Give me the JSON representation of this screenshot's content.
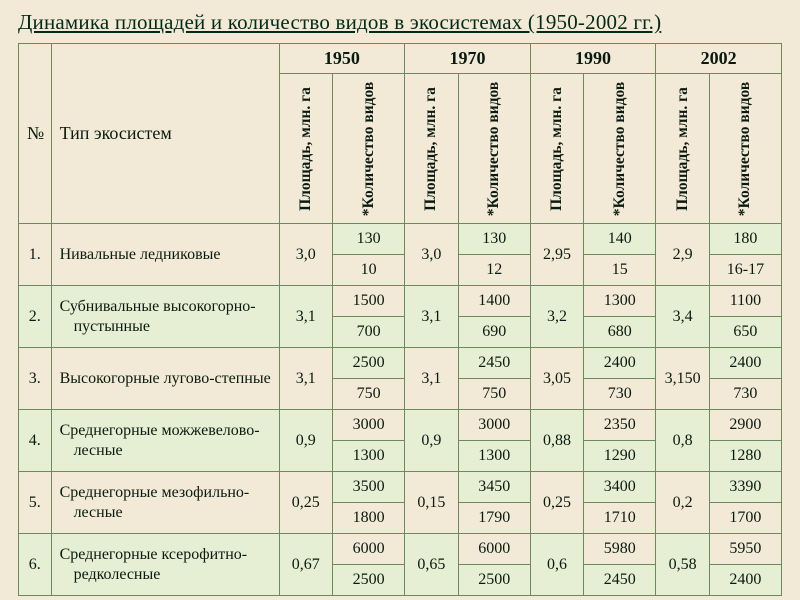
{
  "meta": {
    "background_color": "#f2ead6",
    "band_colors": [
      "#f2ead6",
      "#e6efd4"
    ],
    "border_color": "#6c8a5a",
    "font_family": "Times New Roman",
    "title_fontsize_pt": 16,
    "body_fontsize_pt": 12
  },
  "title": "Динамика площадей и количество видов в экосистемах (1950-2002 гг.)",
  "columns": {
    "num": "№",
    "name": "Тип экосистем",
    "years": [
      "1950",
      "1970",
      "1990",
      "2002"
    ],
    "sub": {
      "area": "Площадь, млн. га",
      "species": "*Количество видов"
    }
  },
  "rows": [
    {
      "n": "1.",
      "name": "Нивальные ледниковые",
      "years": [
        {
          "area": "3,0",
          "sp_top": "130",
          "sp_bot": "10"
        },
        {
          "area": "3,0",
          "sp_top": "130",
          "sp_bot": "12"
        },
        {
          "area": "2,95",
          "sp_top": "140",
          "sp_bot": "15"
        },
        {
          "area": "2,9",
          "sp_top": "180",
          "sp_bot": "16-17"
        }
      ]
    },
    {
      "n": "2.",
      "name": "Субнивальные высокогорно-пустынные",
      "years": [
        {
          "area": "3,1",
          "sp_top": "1500",
          "sp_bot": "700"
        },
        {
          "area": "3,1",
          "sp_top": "1400",
          "sp_bot": "690"
        },
        {
          "area": "3,2",
          "sp_top": "1300",
          "sp_bot": "680"
        },
        {
          "area": "3,4",
          "sp_top": "1100",
          "sp_bot": "650"
        }
      ]
    },
    {
      "n": "3.",
      "name": "Высокогорные лугово-степные",
      "years": [
        {
          "area": "3,1",
          "sp_top": "2500",
          "sp_bot": "750"
        },
        {
          "area": "3,1",
          "sp_top": "2450",
          "sp_bot": "750"
        },
        {
          "area": "3,05",
          "sp_top": "2400",
          "sp_bot": "730"
        },
        {
          "area": "3,150",
          "sp_top": "2400",
          "sp_bot": "730"
        }
      ]
    },
    {
      "n": "4.",
      "name": "Среднегорные можжевелово-лесные",
      "years": [
        {
          "area": "0,9",
          "sp_top": "3000",
          "sp_bot": "1300"
        },
        {
          "area": "0,9",
          "sp_top": "3000",
          "sp_bot": "1300"
        },
        {
          "area": "0,88",
          "sp_top": "2350",
          "sp_bot": "1290"
        },
        {
          "area": "0,8",
          "sp_top": "2900",
          "sp_bot": "1280"
        }
      ]
    },
    {
      "n": "5.",
      "name": "Среднегорные мезофильно-лесные",
      "years": [
        {
          "area": "0,25",
          "sp_top": "3500",
          "sp_bot": "1800"
        },
        {
          "area": "0,15",
          "sp_top": "3450",
          "sp_bot": "1790"
        },
        {
          "area": "0,25",
          "sp_top": "3400",
          "sp_bot": "1710"
        },
        {
          "area": "0,2",
          "sp_top": "3390",
          "sp_bot": "1700"
        }
      ]
    },
    {
      "n": "6.",
      "name": "Среднегорные ксерофитно-редколесные",
      "years": [
        {
          "area": "0,67",
          "sp_top": "6000",
          "sp_bot": "2500"
        },
        {
          "area": "0,65",
          "sp_top": "6000",
          "sp_bot": "2500"
        },
        {
          "area": "0,6",
          "sp_top": "5980",
          "sp_bot": "2450"
        },
        {
          "area": "0,58",
          "sp_top": "5950",
          "sp_bot": "2400"
        }
      ]
    }
  ]
}
